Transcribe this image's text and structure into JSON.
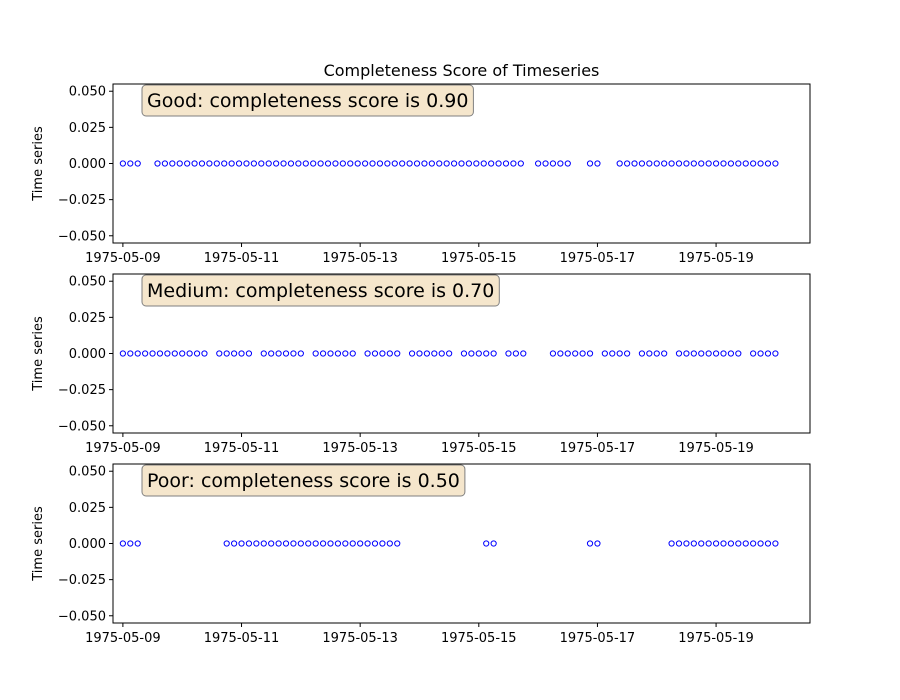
{
  "chart_data": {
    "title": "Completeness Score of Timeseries",
    "colors": {
      "marker": "#0000ff",
      "annotation_box": "#f5e6cc"
    },
    "subplots": [
      {
        "type": "scatter",
        "annotation": "Good: completeness score is 0.90",
        "ylabel": "Time series",
        "xlim": [
          "1975-05-08 20:00",
          "1975-05-20 14:00"
        ],
        "ylim": [
          -0.055,
          0.055
        ],
        "yticks": [
          "0.050",
          "0.025",
          "0.000",
          "−0.025",
          "−0.050"
        ],
        "xticks": [
          "1975-05-09",
          "1975-05-11",
          "1975-05-13",
          "1975-05-15",
          "1975-05-17",
          "1975-05-19"
        ],
        "y_value": 0.0,
        "present_ranges": [
          [
            "1975-05-09 00:00",
            "1975-05-09 06:00"
          ],
          [
            "1975-05-09 14:00",
            "1975-05-15 18:00"
          ],
          [
            "1975-05-16 00:00",
            "1975-05-16 12:00"
          ],
          [
            "1975-05-16 21:00",
            "1975-05-17 00:00"
          ],
          [
            "1975-05-17 09:00",
            "1975-05-20 00:00"
          ]
        ]
      },
      {
        "type": "scatter",
        "annotation": "Medium: completeness score is 0.70",
        "ylabel": "Time series",
        "xlim": [
          "1975-05-08 20:00",
          "1975-05-20 14:00"
        ],
        "ylim": [
          -0.055,
          0.055
        ],
        "yticks": [
          "0.050",
          "0.025",
          "0.000",
          "−0.025",
          "−0.050"
        ],
        "xticks": [
          "1975-05-09",
          "1975-05-11",
          "1975-05-13",
          "1975-05-15",
          "1975-05-17",
          "1975-05-19"
        ],
        "y_value": 0.0,
        "present_ranges": [
          [
            "1975-05-09 00:00",
            "1975-05-09 03:00"
          ],
          [
            "1975-05-09 06:00",
            "1975-05-09 15:00"
          ],
          [
            "1975-05-09 18:00",
            "1975-05-09 21:00"
          ],
          [
            "1975-05-10 00:00",
            "1975-05-10 09:00"
          ],
          [
            "1975-05-10 15:00",
            "1975-05-10 18:00"
          ],
          [
            "1975-05-10 21:00",
            "1975-05-11 03:00"
          ],
          [
            "1975-05-11 09:00",
            "1975-05-12 00:00"
          ],
          [
            "1975-05-12 06:00",
            "1975-05-12 21:00"
          ],
          [
            "1975-05-13 03:00",
            "1975-05-13 15:00"
          ],
          [
            "1975-05-13 21:00",
            "1975-05-14 12:00"
          ],
          [
            "1975-05-14 18:00",
            "1975-05-15 06:00"
          ],
          [
            "1975-05-15 12:00",
            "1975-05-15 18:00"
          ],
          [
            "1975-05-16 06:00",
            "1975-05-16 21:00"
          ],
          [
            "1975-05-17 03:00",
            "1975-05-17 12:00"
          ],
          [
            "1975-05-17 18:00",
            "1975-05-18 03:00"
          ],
          [
            "1975-05-18 09:00",
            "1975-05-19 09:00"
          ],
          [
            "1975-05-19 15:00",
            "1975-05-20 00:00"
          ]
        ]
      },
      {
        "type": "scatter",
        "annotation": "Poor: completeness score is 0.50",
        "ylabel": "Time series",
        "xlim": [
          "1975-05-08 20:00",
          "1975-05-20 14:00"
        ],
        "ylim": [
          -0.055,
          0.055
        ],
        "yticks": [
          "0.050",
          "0.025",
          "0.000",
          "−0.025",
          "−0.050"
        ],
        "xticks": [
          "1975-05-09",
          "1975-05-11",
          "1975-05-13",
          "1975-05-15",
          "1975-05-17",
          "1975-05-19"
        ],
        "y_value": 0.0,
        "present_ranges": [
          [
            "1975-05-09 00:00",
            "1975-05-09 06:00"
          ],
          [
            "1975-05-10 18:00",
            "1975-05-13 15:00"
          ],
          [
            "1975-05-15 03:00",
            "1975-05-15 06:00"
          ],
          [
            "1975-05-16 21:00",
            "1975-05-17 00:00"
          ],
          [
            "1975-05-18 06:00",
            "1975-05-20 00:00"
          ]
        ]
      }
    ]
  }
}
